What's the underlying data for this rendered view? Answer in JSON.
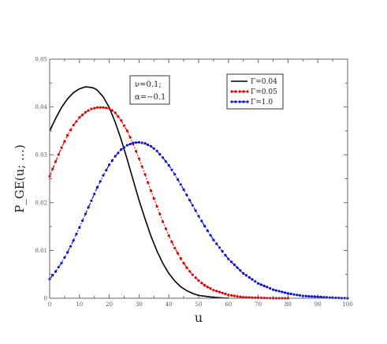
{
  "chart_data": {
    "type": "line",
    "xlabel": "u",
    "ylabel": "P_GE(u; …)",
    "xlim": [
      0,
      100
    ],
    "ylim": [
      0,
      0.05
    ],
    "x_ticks": [
      "0",
      "10",
      "20",
      "30",
      "40",
      "50",
      "60",
      "70",
      "80",
      "90",
      "100"
    ],
    "y_ticks": [
      "0",
      "0.01",
      "0.02",
      "0.03",
      "0.04",
      "0.05"
    ],
    "grid": false,
    "legend_position": "top-right",
    "annotation": [
      "ν=0.1;",
      "α=−0.1"
    ],
    "series": [
      {
        "name": "Γ=0.04",
        "color": "#000000",
        "style": "solid",
        "x": [
          0,
          2,
          4,
          6,
          8,
          10,
          12,
          14,
          15,
          16,
          18,
          20,
          22,
          24,
          26,
          28,
          30,
          32,
          34,
          36,
          38,
          40,
          42,
          44,
          46,
          48,
          50,
          55,
          60
        ],
        "y": [
          0.035,
          0.0376,
          0.0399,
          0.0417,
          0.043,
          0.0438,
          0.0442,
          0.0441,
          0.0439,
          0.0435,
          0.0421,
          0.0399,
          0.0368,
          0.0332,
          0.0291,
          0.0248,
          0.0205,
          0.0166,
          0.013,
          0.0099,
          0.0073,
          0.0052,
          0.0036,
          0.0024,
          0.0016,
          0.001,
          0.0006,
          0.0002,
          0.0
        ]
      },
      {
        "name": "Γ=0.05",
        "color": "#e00000",
        "style": "dash-dot",
        "x": [
          0,
          2,
          4,
          6,
          8,
          10,
          12,
          14,
          16,
          18,
          19,
          20,
          22,
          24,
          26,
          28,
          30,
          32,
          34,
          36,
          38,
          40,
          42,
          44,
          46,
          48,
          50,
          52,
          55,
          60,
          65,
          70,
          75,
          80
        ],
        "y": [
          0.0255,
          0.0286,
          0.0315,
          0.0341,
          0.0362,
          0.0378,
          0.0389,
          0.0396,
          0.0399,
          0.0399,
          0.0398,
          0.0397,
          0.0388,
          0.0372,
          0.035,
          0.0323,
          0.0292,
          0.0259,
          0.0225,
          0.0192,
          0.016,
          0.0131,
          0.0105,
          0.0083,
          0.0064,
          0.0049,
          0.0037,
          0.0027,
          0.0017,
          0.0007,
          0.0002,
          0.0001,
          0.0,
          0.0
        ]
      },
      {
        "name": "Γ=1.0",
        "color": "#1010d0",
        "style": "dash-dot",
        "x": [
          0,
          2,
          4,
          6,
          8,
          10,
          12,
          14,
          16,
          18,
          20,
          22,
          24,
          26,
          28,
          30,
          32,
          34,
          36,
          38,
          40,
          42,
          44,
          46,
          48,
          50,
          52,
          55,
          60,
          65,
          70,
          75,
          80,
          85,
          90,
          95,
          100
        ],
        "y": [
          0.004,
          0.0056,
          0.0074,
          0.0096,
          0.0121,
          0.0148,
          0.0176,
          0.0204,
          0.0232,
          0.0257,
          0.0279,
          0.0297,
          0.0311,
          0.032,
          0.0325,
          0.0326,
          0.0324,
          0.0318,
          0.0308,
          0.0294,
          0.0278,
          0.0259,
          0.0238,
          0.0216,
          0.0194,
          0.0172,
          0.0151,
          0.0122,
          0.0082,
          0.0052,
          0.0031,
          0.0018,
          0.001,
          0.0005,
          0.0003,
          0.0001,
          0.0
        ]
      }
    ]
  }
}
